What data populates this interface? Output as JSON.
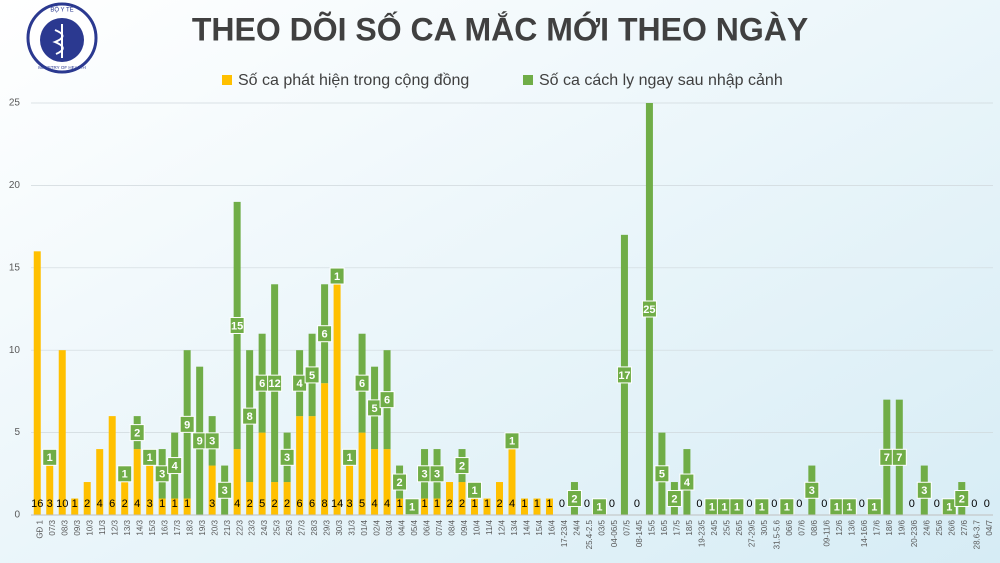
{
  "chart_data": {
    "type": "bar",
    "stacked": true,
    "title": "THEO DÕI SỐ CA MẮC MỚI THEO NGÀY",
    "logo": {
      "top": "BỘ Y TẾ",
      "bottom": "MINISTRY OF HEALTH"
    },
    "categories": [
      "GĐ 1",
      "07/3",
      "08/3",
      "09/3",
      "10/3",
      "11/3",
      "12/3",
      "13/3",
      "14/3",
      "15/3",
      "16/3",
      "17/3",
      "18/3",
      "19/3",
      "20/3",
      "21/3",
      "22/3",
      "23/3",
      "24/3",
      "25/3",
      "26/3",
      "27/3",
      "28/3",
      "29/3",
      "30/3",
      "31/3",
      "01/4",
      "02/4",
      "03/4",
      "04/4",
      "05/4",
      "06/4",
      "07/4",
      "08/4",
      "09/4",
      "10/4",
      "11/4",
      "12/4",
      "13/4",
      "14/4",
      "15/4",
      "16/4",
      "17-23/4",
      "24/4",
      "25.4-2.5",
      "03/5",
      "04-06/5",
      "07/5",
      "08-14/5",
      "15/5",
      "16/5",
      "17/5",
      "18/5",
      "19-23/5",
      "24/5",
      "25/5",
      "26/5",
      "27-29/5",
      "30/5",
      "31.5-5.6",
      "06/6",
      "07/6",
      "08/6",
      "09-11/6",
      "12/6",
      "13/6",
      "14-16/6",
      "17/6",
      "18/6",
      "19/6",
      "20-23/6",
      "24/6",
      "25/6",
      "26/6",
      "27/6",
      "28.6-3.7",
      "04/7"
    ],
    "series": [
      {
        "name": "Số ca phát hiện trong cộng đồng",
        "color": "#ffc000",
        "values": [
          16,
          3,
          10,
          1,
          2,
          4,
          6,
          2,
          4,
          3,
          1,
          1,
          1,
          0,
          3,
          null,
          4,
          2,
          5,
          2,
          2,
          6,
          6,
          8,
          14,
          3,
          5,
          4,
          4,
          1,
          null,
          1,
          1,
          2,
          2,
          1,
          1,
          2,
          4,
          1,
          1,
          1,
          0,
          null,
          0,
          null,
          0,
          null,
          0,
          null,
          null,
          null,
          null,
          0,
          null,
          null,
          null,
          0,
          null,
          0,
          null,
          0,
          null,
          0,
          null,
          null,
          0,
          null,
          null,
          null,
          0,
          null,
          0,
          null,
          null,
          0,
          0
        ]
      },
      {
        "name": "Số ca cách ly ngay sau nhập cảnh",
        "color": "#70ad47",
        "values": [
          null,
          1,
          null,
          null,
          null,
          null,
          null,
          1,
          2,
          1,
          3,
          4,
          9,
          9,
          3,
          3,
          15,
          8,
          6,
          12,
          3,
          4,
          5,
          6,
          1,
          1,
          6,
          5,
          6,
          2,
          1,
          3,
          3,
          null,
          2,
          1,
          null,
          null,
          1,
          null,
          null,
          null,
          null,
          2,
          null,
          1,
          null,
          17,
          null,
          25,
          5,
          2,
          4,
          null,
          1,
          1,
          1,
          null,
          1,
          null,
          1,
          null,
          3,
          null,
          1,
          1,
          null,
          1,
          7,
          7,
          null,
          3,
          null,
          1,
          2,
          null,
          null
        ]
      }
    ],
    "ylim": [
      0,
      25
    ],
    "yticks": [
      0,
      5,
      10,
      15,
      20,
      25
    ],
    "grid": true,
    "legend": "top"
  }
}
